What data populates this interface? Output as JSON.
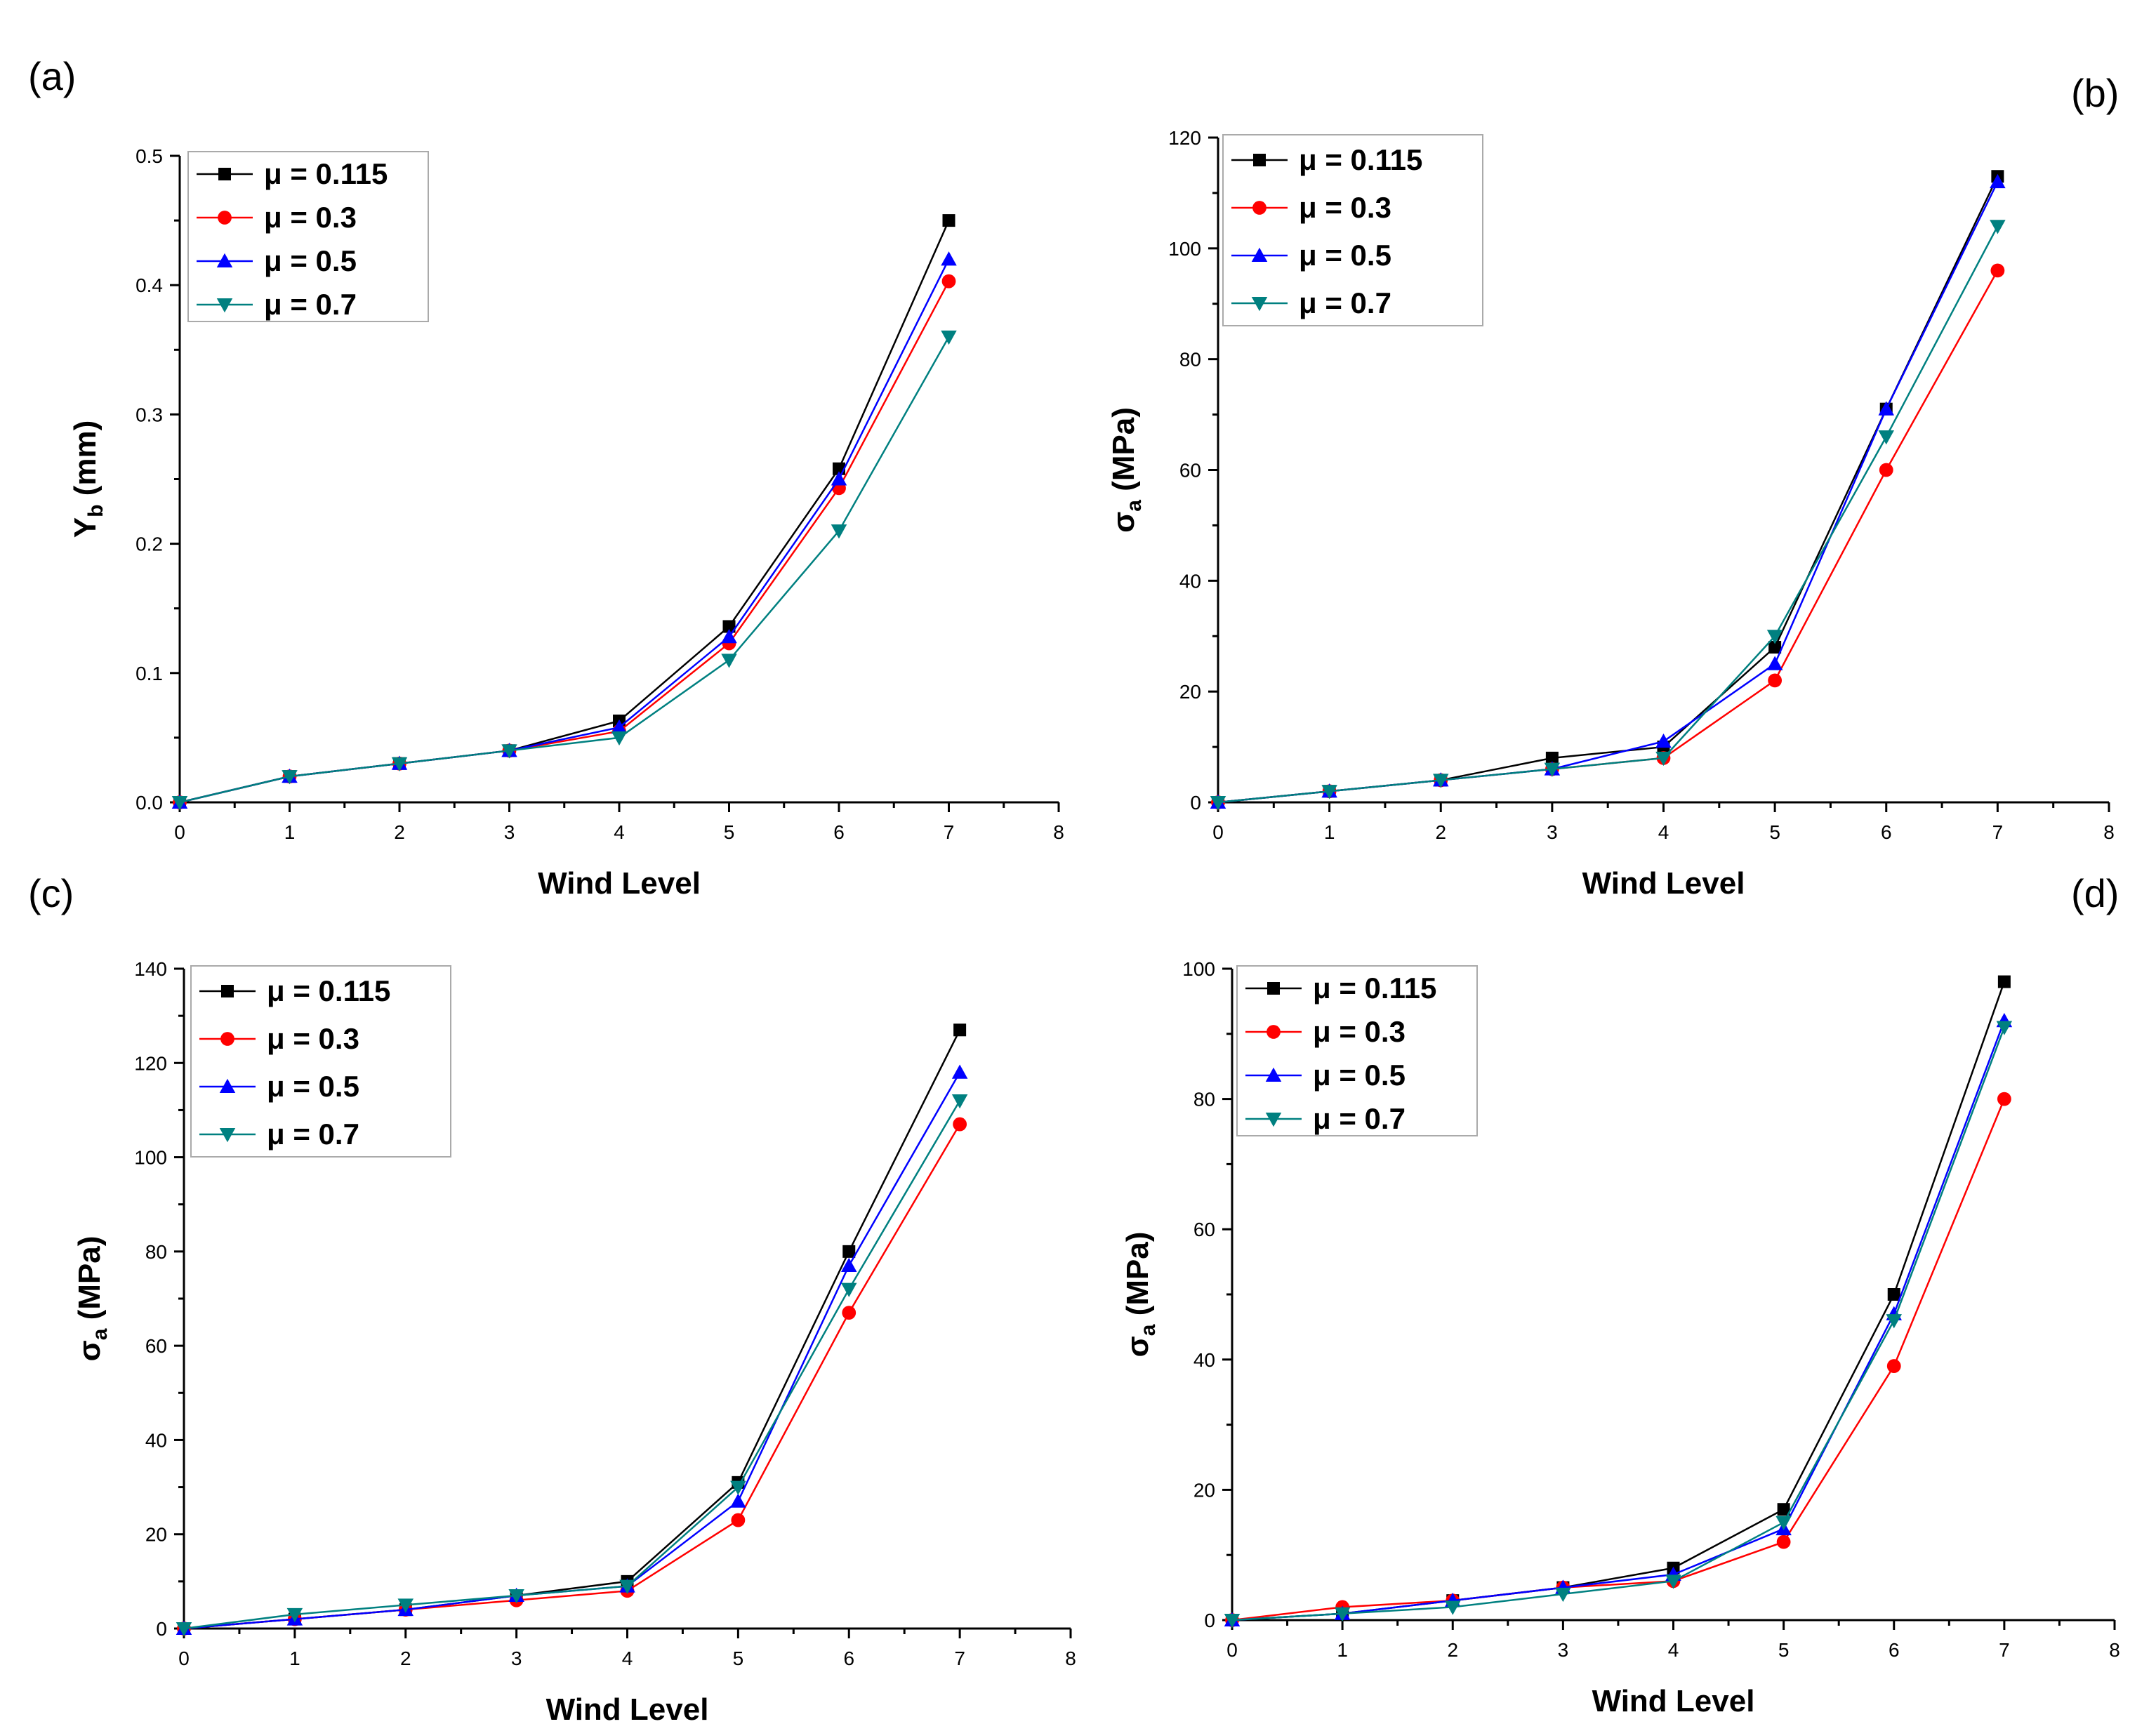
{
  "colors": {
    "series": [
      "#000000",
      "#ff0000",
      "#0000ff",
      "#008080"
    ],
    "markers": [
      "square",
      "circle",
      "triangle-up",
      "triangle-down"
    ]
  },
  "chart_data": [
    {
      "panel": "(a)",
      "type": "line",
      "xlabel": "Wind Level",
      "ylabel": "Y",
      "ylabel_sub": "b",
      "ylabel_unit": " (mm)",
      "xlim": [
        0,
        8
      ],
      "ylim": [
        0,
        0.5
      ],
      "xticks": [
        "0",
        "1",
        "2",
        "3",
        "4",
        "5",
        "6",
        "7",
        "8"
      ],
      "yticks": [
        "0.0",
        "0.1",
        "0.2",
        "0.3",
        "0.4",
        "0.5"
      ],
      "ytick_values": [
        0,
        0.1,
        0.2,
        0.3,
        0.4,
        0.5
      ],
      "legend_position": "top-left",
      "x": [
        0,
        1,
        2,
        3,
        4,
        5,
        6,
        7
      ],
      "series": [
        {
          "name": "μ = 0.115",
          "values": [
            0,
            0.02,
            0.03,
            0.04,
            0.063,
            0.136,
            0.258,
            0.45
          ]
        },
        {
          "name": "μ = 0.3",
          "values": [
            0,
            0.02,
            0.03,
            0.04,
            0.055,
            0.123,
            0.243,
            0.403
          ]
        },
        {
          "name": "μ = 0.5",
          "values": [
            0,
            0.02,
            0.03,
            0.04,
            0.058,
            0.128,
            0.25,
            0.42
          ]
        },
        {
          "name": "μ = 0.7",
          "values": [
            0,
            0.02,
            0.03,
            0.04,
            0.05,
            0.11,
            0.21,
            0.36
          ]
        }
      ]
    },
    {
      "panel": "(b)",
      "type": "line",
      "xlabel": "Wind Level",
      "ylabel": "σ",
      "ylabel_sub": "a",
      "ylabel_unit": " (MPa)",
      "xlim": [
        0,
        8
      ],
      "ylim": [
        0,
        120
      ],
      "xticks": [
        "0",
        "1",
        "2",
        "3",
        "4",
        "5",
        "6",
        "7",
        "8"
      ],
      "yticks": [
        "0",
        "20",
        "40",
        "60",
        "80",
        "100",
        "120"
      ],
      "ytick_values": [
        0,
        20,
        40,
        60,
        80,
        100,
        120
      ],
      "legend_position": "top-left",
      "x": [
        0,
        1,
        2,
        3,
        4,
        5,
        6,
        7
      ],
      "series": [
        {
          "name": "μ = 0.115",
          "values": [
            0,
            2,
            4,
            8,
            10,
            28,
            71,
            113
          ]
        },
        {
          "name": "μ = 0.3",
          "values": [
            0,
            2,
            4,
            6,
            8,
            22,
            60,
            96
          ]
        },
        {
          "name": "μ = 0.5",
          "values": [
            0,
            2,
            4,
            6,
            11,
            25,
            71,
            112
          ]
        },
        {
          "name": "μ = 0.7",
          "values": [
            0,
            2,
            4,
            6,
            8,
            30,
            66,
            104
          ]
        }
      ]
    },
    {
      "panel": "(c)",
      "type": "line",
      "xlabel": "Wind Level",
      "ylabel": "σ",
      "ylabel_sub": "a",
      "ylabel_unit": " (MPa)",
      "xlim": [
        0,
        8
      ],
      "ylim": [
        0,
        140
      ],
      "xticks": [
        "0",
        "1",
        "2",
        "3",
        "4",
        "5",
        "6",
        "7",
        "8"
      ],
      "yticks": [
        "0",
        "20",
        "40",
        "60",
        "80",
        "100",
        "120",
        "140"
      ],
      "ytick_values": [
        0,
        20,
        40,
        60,
        80,
        100,
        120,
        140
      ],
      "legend_position": "top-left",
      "x": [
        0,
        1,
        2,
        3,
        4,
        5,
        6,
        7
      ],
      "series": [
        {
          "name": "μ = 0.115",
          "values": [
            0,
            2,
            4,
            7,
            10,
            31,
            80,
            127
          ]
        },
        {
          "name": "μ = 0.3",
          "values": [
            0,
            2,
            4,
            6,
            8,
            23,
            67,
            107
          ]
        },
        {
          "name": "μ = 0.5",
          "values": [
            0,
            2,
            4,
            7,
            9,
            27,
            77,
            118
          ]
        },
        {
          "name": "μ = 0.7",
          "values": [
            0,
            3,
            5,
            7,
            9,
            30,
            72,
            112
          ]
        }
      ]
    },
    {
      "panel": "(d)",
      "type": "line",
      "xlabel": "Wind Level",
      "ylabel": "σ",
      "ylabel_sub": "a",
      "ylabel_unit": " (MPa)",
      "xlim": [
        0,
        8
      ],
      "ylim": [
        0,
        100
      ],
      "xticks": [
        "0",
        "1",
        "2",
        "3",
        "4",
        "5",
        "6",
        "7",
        "8"
      ],
      "yticks": [
        "0",
        "20",
        "40",
        "60",
        "80",
        "100"
      ],
      "ytick_values": [
        0,
        20,
        40,
        60,
        80,
        100
      ],
      "legend_position": "top-left",
      "x": [
        0,
        1,
        2,
        3,
        4,
        5,
        6,
        7
      ],
      "series": [
        {
          "name": "μ = 0.115",
          "values": [
            0,
            1,
            3,
            5,
            8,
            17,
            50,
            98
          ]
        },
        {
          "name": "μ = 0.3",
          "values": [
            0,
            2,
            3,
            5,
            6,
            12,
            39,
            80
          ]
        },
        {
          "name": "μ = 0.5",
          "values": [
            0,
            1,
            3,
            5,
            7,
            14,
            47,
            92
          ]
        },
        {
          "name": "μ = 0.7",
          "values": [
            0,
            1,
            2,
            4,
            6,
            15,
            46,
            91
          ]
        }
      ]
    }
  ]
}
